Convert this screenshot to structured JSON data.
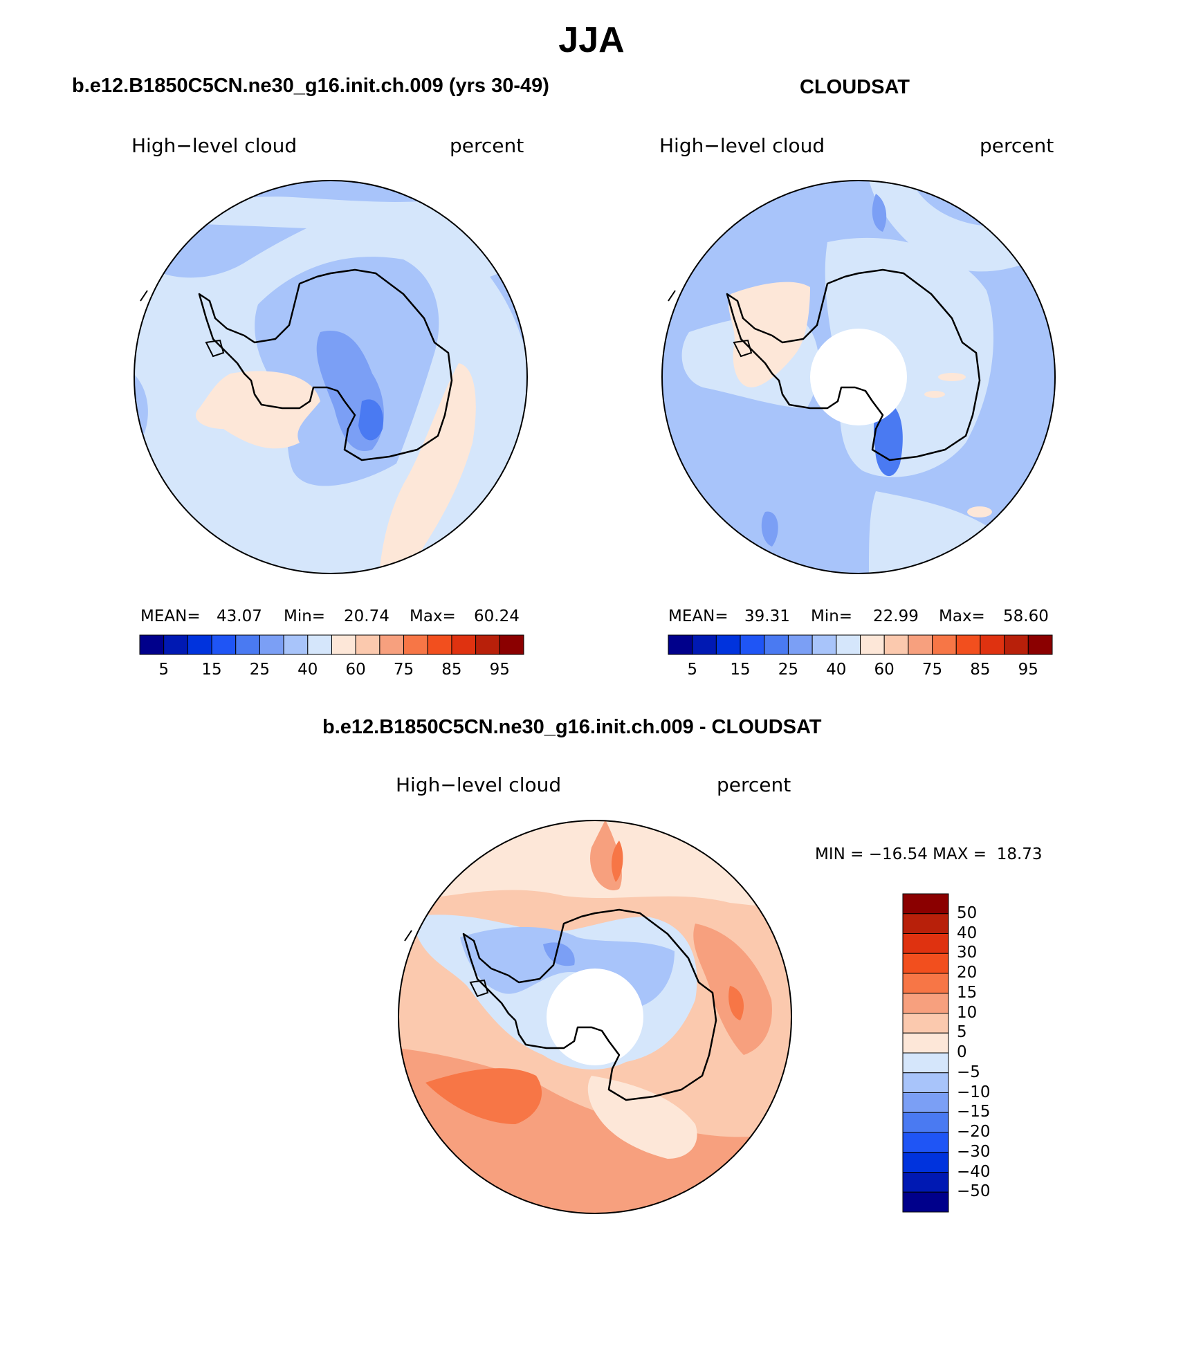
{
  "figure": {
    "title": "JJA"
  },
  "panels": [
    {
      "id": "model",
      "title": "b.e12.B1850C5CN.ne30_g16.init.ch.009 (yrs 30-49)",
      "left_label": "High−level cloud",
      "right_label": "percent",
      "stats": {
        "mean_label": "MEAN=",
        "mean": "43.07",
        "min_label": "Min=",
        "min": "20.74",
        "max_label": "Max=",
        "max": "60.24"
      },
      "observation_hole": false
    },
    {
      "id": "obs",
      "title": "CLOUDSAT",
      "left_label": "High−level cloud",
      "right_label": "percent",
      "stats": {
        "mean_label": "MEAN=",
        "mean": "39.31",
        "min_label": "Min=",
        "min": "22.99",
        "max_label": "Max=",
        "max": "58.60"
      },
      "observation_hole": true
    },
    {
      "id": "diff",
      "title": "b.e12.B1850C5CN.ne30_g16.init.ch.009 - CLOUDSAT",
      "left_label": "High−level cloud",
      "right_label": "percent",
      "minmax_text": "MIN = −16.54 MAX =  18.73",
      "observation_hole": true
    }
  ],
  "colorbar_abs": {
    "colors": [
      "#00008b",
      "#0019b3",
      "#0033dd",
      "#1f55f5",
      "#4a7af2",
      "#7b9ff5",
      "#a8c4fa",
      "#d5e6fb",
      "#fde7d8",
      "#fbc9ae",
      "#f7a07e",
      "#f77646",
      "#f24f1e",
      "#df3210",
      "#b8200a",
      "#8b0000"
    ],
    "tick_labels": [
      "5",
      "15",
      "25",
      "40",
      "60",
      "75",
      "85",
      "95"
    ]
  },
  "colorbar_diff": {
    "colors_top_to_bottom": [
      "#8b0000",
      "#b8200a",
      "#df3210",
      "#f24f1e",
      "#f77646",
      "#f7a07e",
      "#fbc9ae",
      "#fde7d8",
      "#d5e6fb",
      "#a8c4fa",
      "#7b9ff5",
      "#4a7af2",
      "#1f55f5",
      "#0033dd",
      "#0019b3",
      "#00008b"
    ],
    "tick_labels": [
      "50",
      "40",
      "30",
      "20",
      "15",
      "10",
      "5",
      "0",
      "−5",
      "−10",
      "−15",
      "−20",
      "−30",
      "−40",
      "−50"
    ]
  }
}
